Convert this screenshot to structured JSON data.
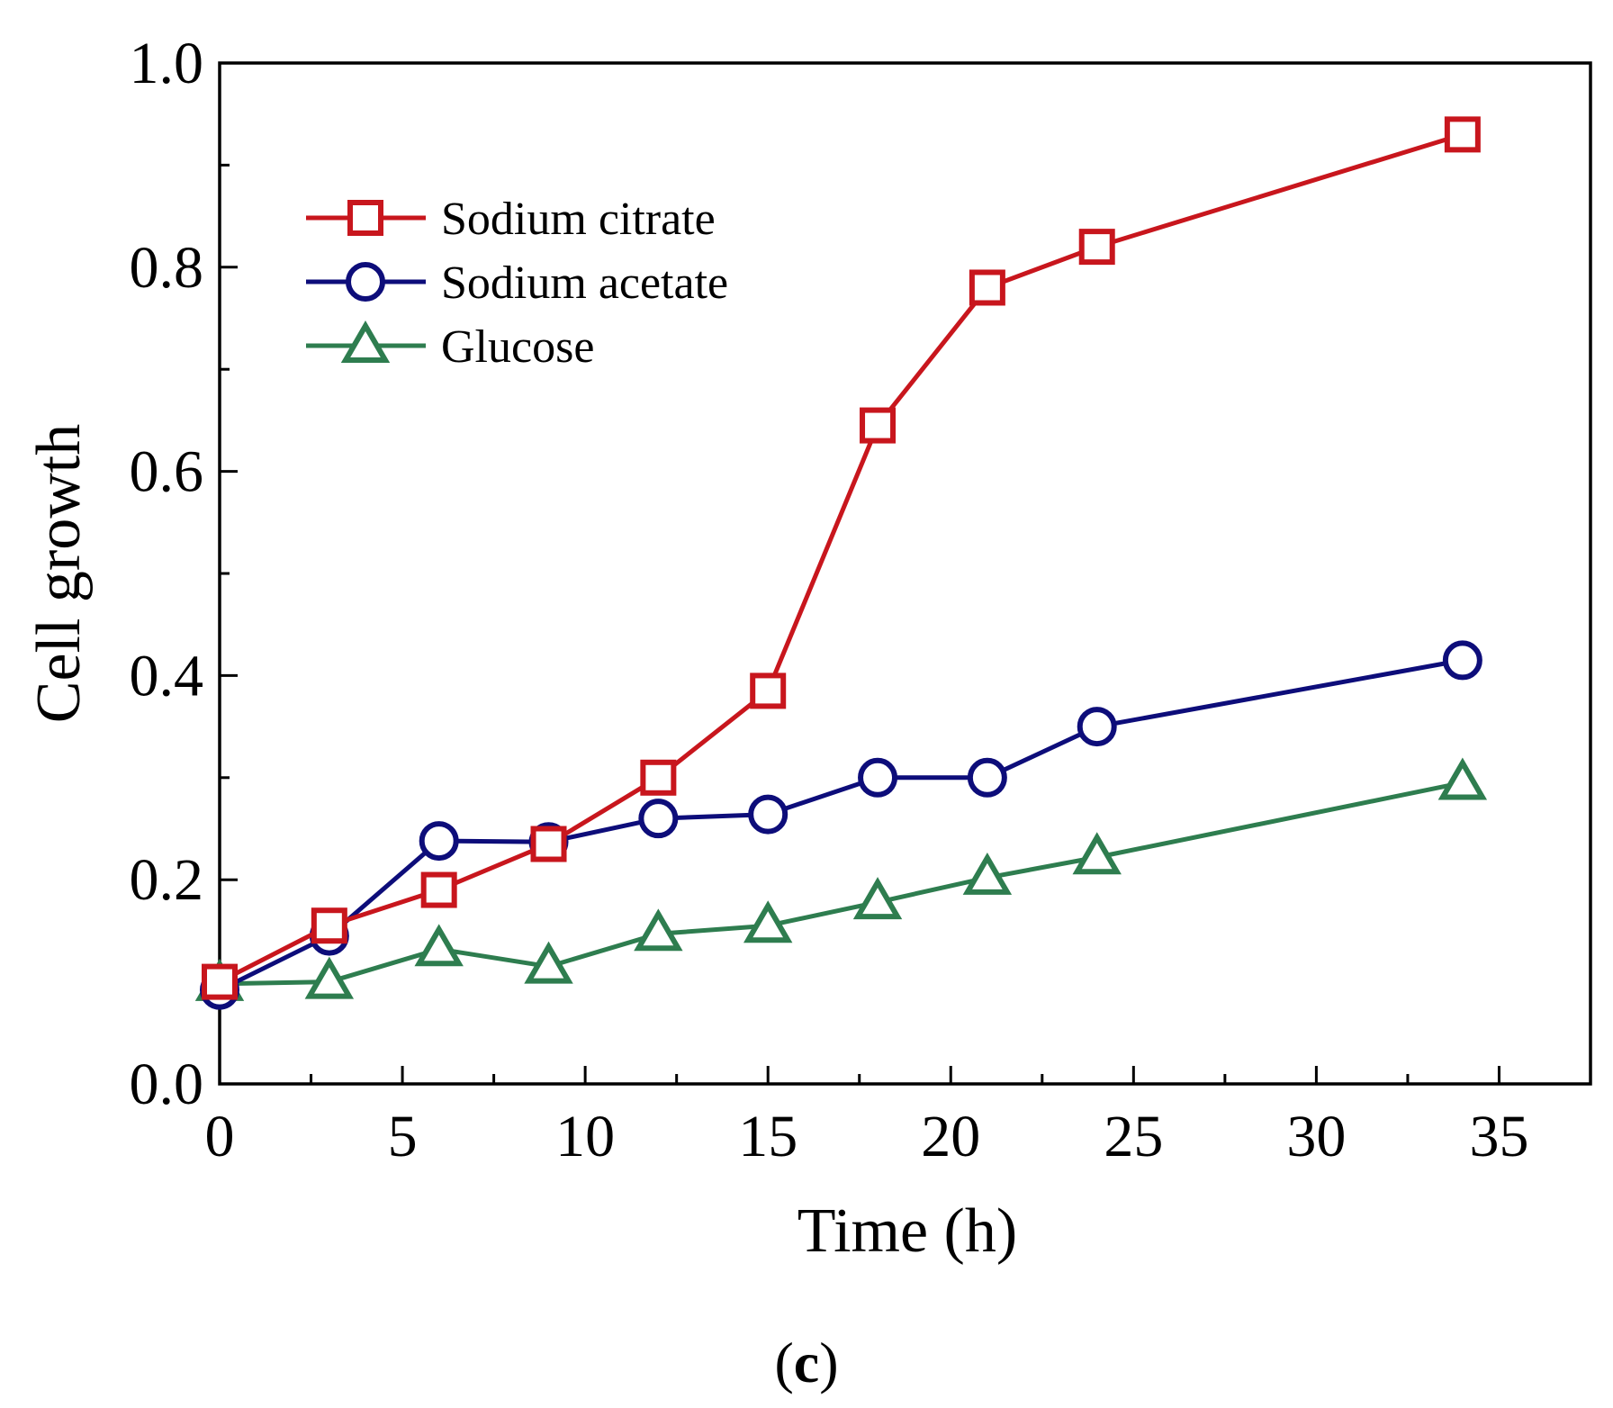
{
  "chart_data": {
    "type": "line",
    "xlabel": "Time (h)",
    "ylabel": "Cell growth",
    "xlim": [
      0,
      37.5
    ],
    "ylim": [
      0,
      1.0
    ],
    "xticks": [
      "0",
      "5",
      "10",
      "15",
      "20",
      "25",
      "30",
      "35"
    ],
    "yticks": [
      "0.0",
      "0.2",
      "0.4",
      "0.6",
      "0.8",
      "1.0"
    ],
    "grid": false,
    "legend_position": "top-left",
    "x": [
      0,
      3,
      6,
      9,
      12,
      15,
      18,
      21,
      24,
      34
    ],
    "series": [
      {
        "name": "Sodium citrate",
        "marker": "square",
        "color": "#c8161d",
        "values": [
          0.1,
          0.155,
          0.19,
          0.235,
          0.3,
          0.385,
          0.645,
          0.78,
          0.82,
          0.93
        ]
      },
      {
        "name": "Sodium acetate",
        "marker": "circle",
        "color": "#0d0d7a",
        "values": [
          0.092,
          0.145,
          0.238,
          0.237,
          0.26,
          0.264,
          0.3,
          0.3,
          0.35,
          0.415
        ]
      },
      {
        "name": "Glucose",
        "marker": "triangle",
        "color": "#2e7d4f",
        "values": [
          0.098,
          0.1,
          0.132,
          0.115,
          0.147,
          0.155,
          0.178,
          0.202,
          0.222,
          0.295
        ]
      }
    ]
  },
  "caption": {
    "open": "(",
    "letter": "c",
    "close": ")"
  }
}
